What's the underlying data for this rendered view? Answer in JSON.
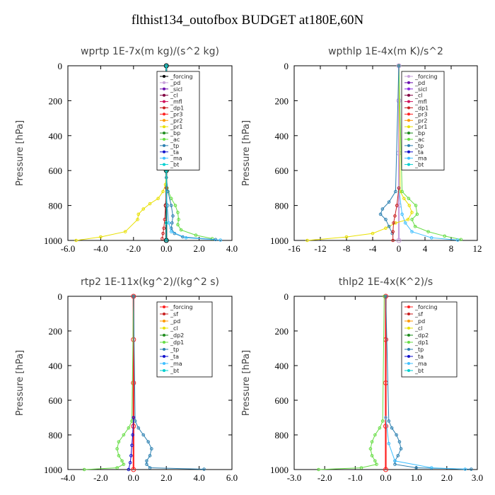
{
  "figure_title": "flthist134_outofbox  BUDGET at180E,60N",
  "chart_data": [
    {
      "type": "line",
      "title": "wprtp  1E-7x(m kg)/(s^2 kg)",
      "ylabel": "Pressure [hPa]",
      "xlim": [
        -6,
        4
      ],
      "ylim": [
        1000,
        0
      ],
      "xticks": [
        "-6.0",
        "-4.0",
        "-2.0",
        "0.0",
        "2.0",
        "4.0"
      ],
      "xtick_values": [
        -6,
        -4,
        -2,
        0,
        2,
        4
      ],
      "yticks": [
        "0",
        "200",
        "400",
        "600",
        "800",
        "1000"
      ],
      "ytick_values": [
        0,
        200,
        400,
        600,
        800,
        1000
      ],
      "legend": [
        "_forcing",
        "_pd",
        "_sicl",
        "_cl",
        "_mfl",
        "_dp1",
        "_pr3",
        "_pr2",
        "_pr1",
        "_bp",
        "_ac",
        "_tp",
        "_ta",
        "_ma",
        "_bt"
      ],
      "colors": [
        "#000000",
        "#c9a0dc",
        "#6a0dad",
        "#800040",
        "#d0105a",
        "#c81e1e",
        "#ff2020",
        "#ff9900",
        "#e8e000",
        "#1e8c1e",
        "#66dd44",
        "#2a7fb0",
        "#1010cc",
        "#3fbfff",
        "#00d0d0"
      ],
      "series": [
        {
          "name": "_forcing",
          "x": [
            0,
            0,
            0,
            0,
            0,
            0
          ],
          "y": [
            0,
            200,
            400,
            600,
            800,
            1000
          ]
        },
        {
          "name": "_pr1",
          "x": [
            0,
            0,
            -0.05,
            -0.2,
            -0.5,
            -1.0,
            -1.4,
            -1.7,
            -1.75,
            -2.5,
            -4.0,
            -5.5
          ],
          "y": [
            0,
            600,
            680,
            720,
            760,
            790,
            820,
            850,
            880,
            950,
            980,
            1000
          ]
        },
        {
          "name": "_ac",
          "x": [
            0,
            0,
            0.05,
            0.3,
            0.55,
            0.7,
            0.75,
            0.7,
            0.9,
            1.8,
            2.8
          ],
          "y": [
            0,
            600,
            700,
            760,
            800,
            840,
            880,
            910,
            940,
            970,
            990
          ]
        },
        {
          "name": "_tp",
          "x": [
            0,
            0,
            0.1,
            0.3,
            0.4,
            0.35,
            0.3,
            0.5,
            1.0,
            3.0
          ],
          "y": [
            0,
            640,
            720,
            800,
            860,
            900,
            930,
            960,
            980,
            995
          ]
        },
        {
          "name": "_ma",
          "x": [
            0,
            0,
            0.05,
            0.15,
            0.3,
            1.2,
            3.3
          ],
          "y": [
            0,
            700,
            800,
            900,
            950,
            985,
            998
          ]
        },
        {
          "name": "_dp1",
          "x": [
            0,
            -0.05,
            -0.1,
            -0.15,
            -0.2,
            -0.25
          ],
          "y": [
            700,
            800,
            880,
            930,
            960,
            990
          ]
        },
        {
          "name": "_bt",
          "x": [
            0,
            0,
            0,
            0,
            0
          ],
          "y": [
            0,
            300,
            600,
            900,
            1000
          ]
        }
      ]
    },
    {
      "type": "line",
      "title": "wpthlp  1E-4x(m K)/s^2",
      "ylabel": "Pressure [hPa]",
      "xlim": [
        -16,
        12
      ],
      "ylim": [
        1000,
        0
      ],
      "xticks": [
        "-16",
        "-12",
        "-8",
        "-4",
        "0",
        "4",
        "8",
        "12"
      ],
      "xtick_values": [
        -16,
        -12,
        -8,
        -4,
        0,
        4,
        8,
        12
      ],
      "yticks": [
        "0",
        "200",
        "400",
        "600",
        "800",
        "1000"
      ],
      "ytick_values": [
        0,
        200,
        400,
        600,
        800,
        1000
      ],
      "legend": [
        "_forcing",
        "_pd",
        "_sicl",
        "_cl",
        "_mfl",
        "_dp1",
        "_pr3",
        "_pr2",
        "_pr1",
        "_bp",
        "_ac",
        "_tp",
        "_ta",
        "_ma",
        "_bt"
      ],
      "colors": [
        "#c9a0dc",
        "#6a0dad",
        "#8a2be2",
        "#800040",
        "#d0105a",
        "#c81e1e",
        "#ff2020",
        "#ff9900",
        "#e8e000",
        "#1e8c1e",
        "#66dd44",
        "#2a7fb0",
        "#1010cc",
        "#3fbfff",
        "#00d0d0"
      ],
      "series": [
        {
          "name": "_forcing",
          "x": [
            0,
            0,
            0,
            0,
            0
          ],
          "y": [
            0,
            200,
            500,
            800,
            1000
          ]
        },
        {
          "name": "_pr1",
          "x": [
            0,
            0.2,
            0.8,
            1.6,
            2.0,
            1.4,
            -0.5,
            -2.0,
            -4.0,
            -8.0,
            -14.0
          ],
          "y": [
            0,
            720,
            760,
            800,
            840,
            880,
            900,
            930,
            960,
            980,
            1000
          ]
        },
        {
          "name": "_ac",
          "x": [
            0,
            0.5,
            1.5,
            2.6,
            2.8,
            2.0,
            2.5,
            4.5,
            7.0,
            9.5
          ],
          "y": [
            0,
            720,
            760,
            800,
            850,
            880,
            920,
            950,
            975,
            995
          ]
        },
        {
          "name": "_tp",
          "x": [
            0,
            -0.5,
            -1.5,
            -2.5,
            -2.8,
            -2.0,
            -1.5,
            -1.0
          ],
          "y": [
            0,
            720,
            780,
            820,
            850,
            880,
            920,
            960
          ]
        },
        {
          "name": "_ma",
          "x": [
            0,
            0.5,
            1.0,
            2.0,
            5.0,
            9.0
          ],
          "y": [
            700,
            850,
            900,
            950,
            985,
            998
          ]
        },
        {
          "name": "_dp1",
          "x": [
            0,
            -0.3,
            -0.6,
            -0.8,
            -0.9,
            -0.9
          ],
          "y": [
            700,
            800,
            860,
            900,
            950,
            1000
          ]
        }
      ]
    },
    {
      "type": "line",
      "title": "rtp2  1E-11x(kg^2)/(kg^2 s)",
      "ylabel": "Pressure [hPa]",
      "xlim": [
        -4,
        6
      ],
      "ylim": [
        1000,
        0
      ],
      "xticks": [
        "-4.0",
        "-2.0",
        "0.0",
        "2.0",
        "4.0",
        "6.0"
      ],
      "xtick_values": [
        -4,
        -2,
        0,
        2,
        4,
        6
      ],
      "yticks": [
        "0",
        "200",
        "400",
        "600",
        "800",
        "1000"
      ],
      "ytick_values": [
        0,
        200,
        400,
        600,
        800,
        1000
      ],
      "legend": [
        "_forcing",
        "_sf",
        "_pd",
        "_cl",
        "_dp2",
        "_dp1",
        "_tp",
        "_ta",
        "_ma",
        "_bt"
      ],
      "colors": [
        "#ff2020",
        "#c81e1e",
        "#ff9900",
        "#e8e000",
        "#1e8c1e",
        "#66dd44",
        "#2a7fb0",
        "#1010cc",
        "#3fbfff",
        "#00d0d0"
      ],
      "series": [
        {
          "name": "_forcing",
          "x": [
            0,
            0,
            0,
            0,
            0
          ],
          "y": [
            0,
            250,
            500,
            750,
            1000
          ]
        },
        {
          "name": "_dp1",
          "x": [
            0,
            -0.1,
            -0.3,
            -0.6,
            -0.9,
            -1.0,
            -0.9,
            -0.7,
            -0.6,
            -1.0,
            -3.0
          ],
          "y": [
            0,
            720,
            760,
            800,
            840,
            880,
            920,
            950,
            970,
            990,
            1000
          ]
        },
        {
          "name": "_tp",
          "x": [
            0,
            0.1,
            0.3,
            0.6,
            0.9,
            1.1,
            1.0,
            0.8,
            0.8,
            1.0,
            4.3
          ],
          "y": [
            0,
            720,
            760,
            800,
            840,
            880,
            920,
            950,
            970,
            990,
            998
          ]
        },
        {
          "name": "_ta",
          "x": [
            0,
            -0.05,
            -0.1,
            -0.15,
            -0.2,
            -0.3
          ],
          "y": [
            700,
            800,
            860,
            920,
            960,
            1000
          ]
        }
      ]
    },
    {
      "type": "line",
      "title": "thlp2  1E-4x(K^2)/s",
      "ylabel": "Pressure [hPa]",
      "xlim": [
        -3,
        3
      ],
      "ylim": [
        1000,
        0
      ],
      "xticks": [
        "-3.0",
        "-2.0",
        "-1.0",
        "0.0",
        "1.0",
        "2.0",
        "3.0"
      ],
      "xtick_values": [
        -3,
        -2,
        -1,
        0,
        1,
        2,
        3
      ],
      "yticks": [
        "0",
        "200",
        "400",
        "600",
        "800",
        "1000"
      ],
      "ytick_values": [
        0,
        200,
        400,
        600,
        800,
        1000
      ],
      "legend": [
        "_forcing",
        "_sf",
        "_pd",
        "_cl",
        "_dp2",
        "_dp1",
        "_tp",
        "_ta",
        "_ma",
        "_bt"
      ],
      "colors": [
        "#ff2020",
        "#c81e1e",
        "#ff9900",
        "#e8e000",
        "#1e8c1e",
        "#66dd44",
        "#2a7fb0",
        "#1010cc",
        "#3fbfff",
        "#00d0d0"
      ],
      "series": [
        {
          "name": "_forcing",
          "x": [
            0,
            0,
            0,
            0,
            0
          ],
          "y": [
            0,
            250,
            500,
            750,
            1000
          ]
        },
        {
          "name": "_dp1",
          "x": [
            -0.05,
            -0.1,
            -0.2,
            -0.35,
            -0.45,
            -0.5,
            -0.45,
            -0.35,
            -0.3,
            -0.8,
            -2.2
          ],
          "y": [
            0,
            720,
            760,
            800,
            840,
            880,
            920,
            950,
            970,
            990,
            1000
          ]
        },
        {
          "name": "_tp",
          "x": [
            0,
            0.1,
            0.2,
            0.35,
            0.45,
            0.5,
            0.4,
            0.3,
            0.3,
            1.0,
            2.8
          ],
          "y": [
            0,
            720,
            760,
            800,
            840,
            880,
            920,
            950,
            970,
            990,
            998
          ]
        },
        {
          "name": "_ma",
          "x": [
            0,
            0.1,
            0.3,
            1.5,
            2.6
          ],
          "y": [
            700,
            850,
            950,
            990,
            998
          ]
        }
      ]
    }
  ]
}
